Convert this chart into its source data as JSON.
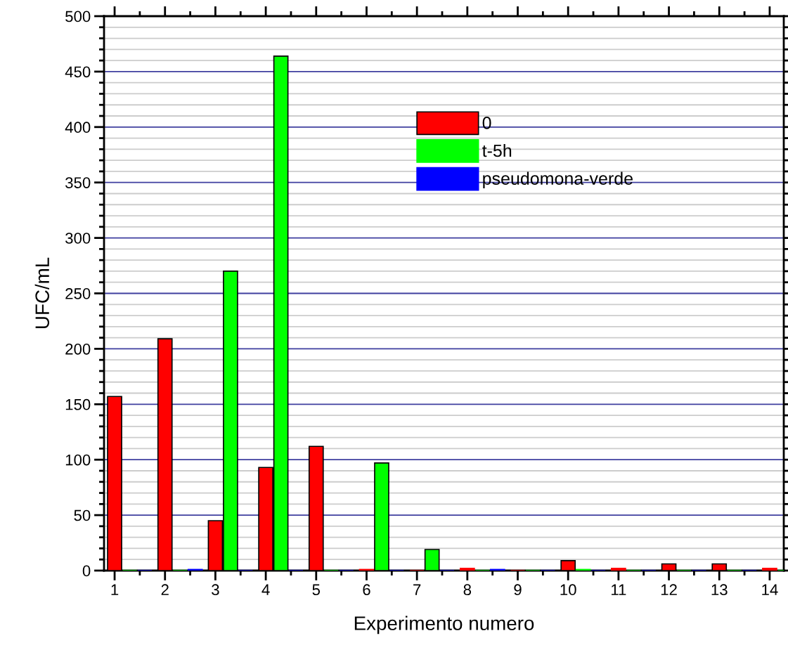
{
  "chart_data": {
    "type": "bar",
    "xlabel": "Experimento numero",
    "ylabel": "UFC/mL",
    "x": [
      1,
      2,
      3,
      4,
      5,
      6,
      7,
      8,
      9,
      10,
      11,
      12,
      13,
      14
    ],
    "series": [
      {
        "name": "0",
        "color": "#ff0000",
        "values": [
          157,
          209,
          45,
          93,
          112,
          1,
          0,
          2,
          0,
          9,
          2,
          6,
          6,
          2
        ]
      },
      {
        "name": "t-5h",
        "color": "#00ff00",
        "values": [
          0,
          0,
          270,
          464,
          0,
          97,
          19,
          0,
          0,
          1,
          0,
          0,
          0,
          0
        ]
      },
      {
        "name": "pseudomona-verde",
        "color": "#0000ff",
        "values": [
          0,
          1,
          0,
          0,
          0,
          0,
          0,
          1,
          0,
          0,
          0,
          0,
          0,
          0
        ]
      }
    ],
    "xlim": [
      0.79,
      14.28
    ],
    "xticks": [
      1,
      2,
      3,
      4,
      5,
      6,
      7,
      8,
      9,
      10,
      11,
      12,
      13,
      14
    ],
    "ylim": [
      0,
      500
    ],
    "yticks": [
      0,
      50,
      100,
      150,
      200,
      250,
      300,
      350,
      400,
      450,
      500
    ],
    "grid": true,
    "legend": "top right"
  }
}
